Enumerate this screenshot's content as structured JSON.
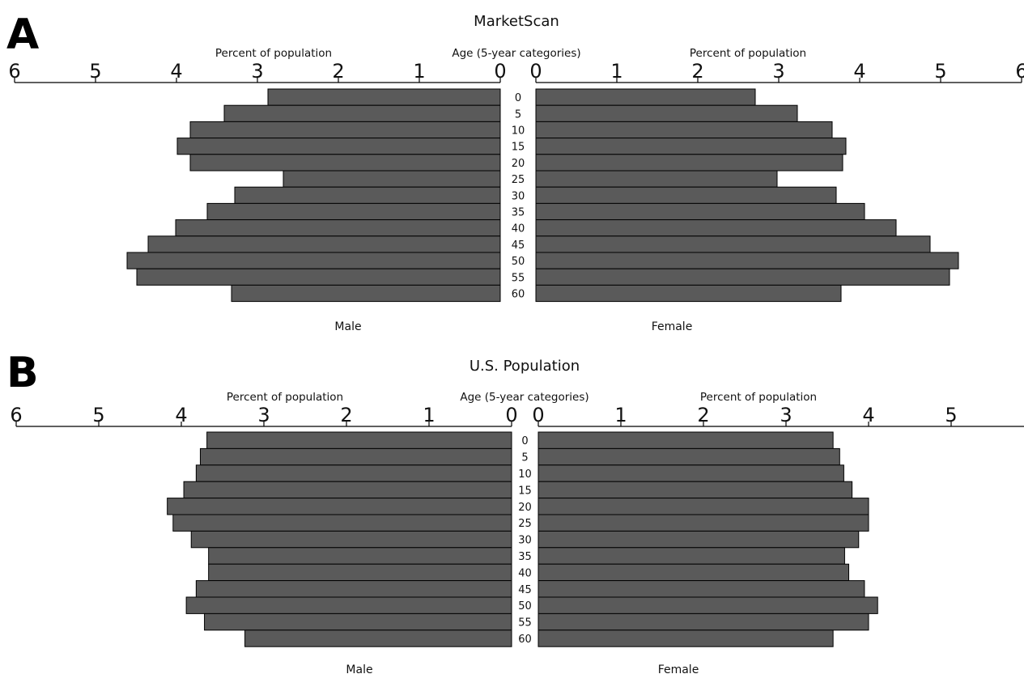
{
  "chart_data": [
    {
      "type": "bar",
      "panel_label": "A",
      "title": "MarketScan",
      "center_label": "Age (5-year categories)",
      "xlabel_left": "Percent of population",
      "xlabel_right": "Percent of population",
      "xlim": [
        0,
        6
      ],
      "xticks": [
        "6",
        "5",
        "4",
        "3",
        "2",
        "1",
        "0"
      ],
      "xticks_right": [
        "0",
        "1",
        "2",
        "3",
        "4",
        "5",
        "6"
      ],
      "categories": [
        "0",
        "5",
        "10",
        "15",
        "20",
        "25",
        "30",
        "35",
        "40",
        "45",
        "50",
        "55",
        "60"
      ],
      "series": [
        {
          "name": "Male",
          "values": [
            2.87,
            3.41,
            3.83,
            3.99,
            3.83,
            2.68,
            3.28,
            3.62,
            4.01,
            4.35,
            4.61,
            4.49,
            3.32
          ]
        },
        {
          "name": "Female",
          "values": [
            2.71,
            3.23,
            3.66,
            3.83,
            3.79,
            2.98,
            3.71,
            4.06,
            4.45,
            4.87,
            5.22,
            5.11,
            3.77
          ]
        }
      ]
    },
    {
      "type": "bar",
      "panel_label": "B",
      "title": "U.S. Population",
      "center_label": "Age (5-year categories)",
      "xlabel_left": "Percent of population",
      "xlabel_right": "Percent of population",
      "xlim": [
        0,
        6
      ],
      "xticks": [
        "6",
        "5",
        "4",
        "3",
        "2",
        "1",
        "0"
      ],
      "xticks_right": [
        "0",
        "1",
        "2",
        "3",
        "4",
        "5",
        "6"
      ],
      "categories": [
        "0",
        "5",
        "10",
        "15",
        "20",
        "25",
        "30",
        "35",
        "40",
        "45",
        "50",
        "55",
        "60"
      ],
      "series": [
        {
          "name": "Male",
          "values": [
            3.69,
            3.77,
            3.82,
            3.97,
            4.17,
            4.1,
            3.88,
            3.67,
            3.67,
            3.82,
            3.94,
            3.72,
            3.23
          ]
        },
        {
          "name": "Female",
          "values": [
            3.57,
            3.65,
            3.7,
            3.8,
            4.0,
            4.0,
            3.88,
            3.71,
            3.76,
            3.95,
            4.11,
            4.0,
            3.57
          ]
        }
      ]
    }
  ]
}
